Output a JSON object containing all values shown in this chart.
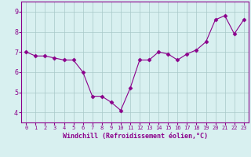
{
  "x": [
    0,
    1,
    2,
    3,
    4,
    5,
    6,
    7,
    8,
    9,
    10,
    11,
    12,
    13,
    14,
    15,
    16,
    17,
    18,
    19,
    20,
    21,
    22,
    23
  ],
  "y": [
    7.0,
    6.8,
    6.8,
    6.7,
    6.6,
    6.6,
    6.0,
    4.8,
    4.8,
    4.5,
    4.1,
    5.2,
    6.6,
    6.6,
    7.0,
    6.9,
    6.6,
    6.9,
    7.1,
    7.5,
    8.6,
    8.8,
    7.9,
    8.6
  ],
  "line_color": "#8B008B",
  "marker": "D",
  "marker_size": 2.5,
  "bg_color": "#d8f0f0",
  "grid_color": "#a8c8c8",
  "axis_label_color": "#8B008B",
  "tick_label_color": "#8B008B",
  "xlabel": "Windchill (Refroidissement éolien,°C)",
  "ylabel": "",
  "xlim": [
    -0.5,
    23.5
  ],
  "ylim": [
    3.5,
    9.5
  ],
  "yticks": [
    4,
    5,
    6,
    7,
    8,
    9
  ],
  "xticks": [
    0,
    1,
    2,
    3,
    4,
    5,
    6,
    7,
    8,
    9,
    10,
    11,
    12,
    13,
    14,
    15,
    16,
    17,
    18,
    19,
    20,
    21,
    22,
    23
  ],
  "xtick_fontsize": 5.0,
  "ytick_fontsize": 6.0,
  "xlabel_fontsize": 6.0,
  "spine_color": "#8B008B",
  "line_width": 0.8
}
